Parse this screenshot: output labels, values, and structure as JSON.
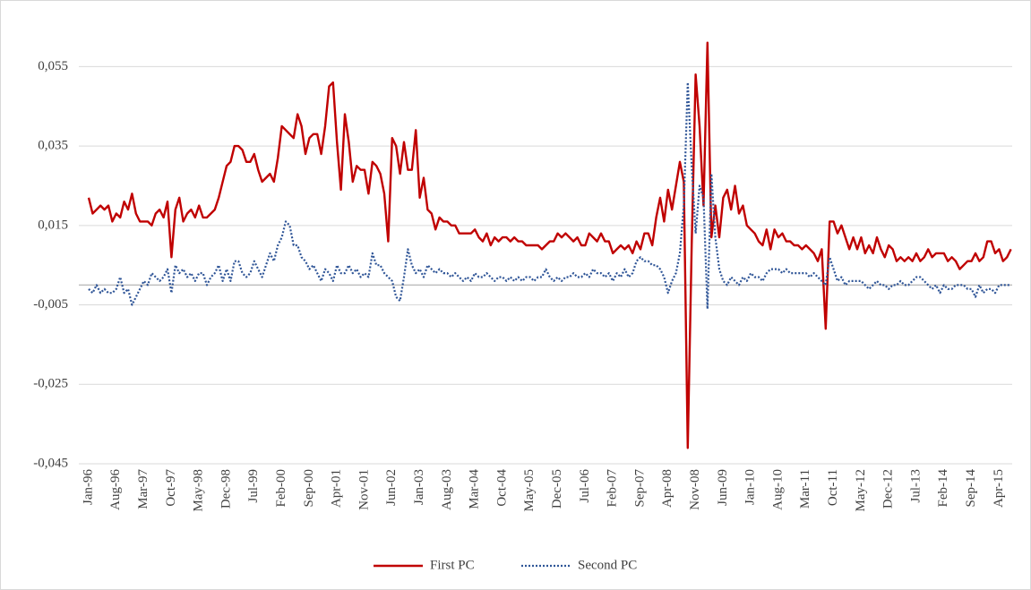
{
  "chart_data": {
    "type": "line",
    "categories": [
      "Jan-96",
      null,
      null,
      null,
      null,
      null,
      null,
      "Aug-96",
      null,
      null,
      null,
      null,
      null,
      null,
      "Mar-97",
      null,
      null,
      null,
      null,
      null,
      null,
      "Oct-97",
      null,
      null,
      null,
      null,
      null,
      null,
      "May-98",
      null,
      null,
      null,
      null,
      null,
      null,
      "Dec-98",
      null,
      null,
      null,
      null,
      null,
      null,
      "Jul-99",
      null,
      null,
      null,
      null,
      null,
      null,
      "Feb-00",
      null,
      null,
      null,
      null,
      null,
      null,
      "Sep-00",
      null,
      null,
      null,
      null,
      null,
      null,
      "Apr-01",
      null,
      null,
      null,
      null,
      null,
      null,
      "Nov-01",
      null,
      null,
      null,
      null,
      null,
      null,
      "Jun-02",
      null,
      null,
      null,
      null,
      null,
      null,
      "Jan-03",
      null,
      null,
      null,
      null,
      null,
      null,
      "Aug-03",
      null,
      null,
      null,
      null,
      null,
      null,
      "Mar-04",
      null,
      null,
      null,
      null,
      null,
      null,
      "Oct-04",
      null,
      null,
      null,
      null,
      null,
      null,
      "May-05",
      null,
      null,
      null,
      null,
      null,
      null,
      "Dec-05",
      null,
      null,
      null,
      null,
      null,
      null,
      "Jul-06",
      null,
      null,
      null,
      null,
      null,
      null,
      "Feb-07",
      null,
      null,
      null,
      null,
      null,
      null,
      "Sep-07",
      null,
      null,
      null,
      null,
      null,
      null,
      "Apr-08",
      null,
      null,
      null,
      null,
      null,
      null,
      "Nov-08",
      null,
      null,
      null,
      null,
      null,
      null,
      "Jun-09",
      null,
      null,
      null,
      null,
      null,
      null,
      "Jan-10",
      null,
      null,
      null,
      null,
      null,
      null,
      "Aug-10",
      null,
      null,
      null,
      null,
      null,
      null,
      "Mar-11",
      null,
      null,
      null,
      null,
      null,
      null,
      "Oct-11",
      null,
      null,
      null,
      null,
      null,
      null,
      "May-12",
      null,
      null,
      null,
      null,
      null,
      null,
      "Dec-12",
      null,
      null,
      null,
      null,
      null,
      null,
      "Jul-13",
      null,
      null,
      null,
      null,
      null,
      null,
      "Feb-14",
      null,
      null,
      null,
      null,
      null,
      null,
      "Sep-14",
      null,
      null,
      null,
      null,
      null,
      null,
      "Apr-15",
      null,
      null,
      null
    ],
    "series": [
      {
        "name": "First PC",
        "color": "#c00000",
        "style": "solid",
        "values": [
          0.022,
          0.018,
          0.019,
          0.02,
          0.019,
          0.02,
          0.016,
          0.018,
          0.017,
          0.021,
          0.019,
          0.023,
          0.018,
          0.016,
          0.016,
          0.016,
          0.015,
          0.018,
          0.019,
          0.017,
          0.021,
          0.007,
          0.019,
          0.022,
          0.016,
          0.018,
          0.019,
          0.017,
          0.02,
          0.017,
          0.017,
          0.018,
          0.019,
          0.022,
          0.026,
          0.03,
          0.031,
          0.035,
          0.035,
          0.034,
          0.031,
          0.031,
          0.033,
          0.029,
          0.026,
          0.027,
          0.028,
          0.026,
          0.032,
          0.04,
          0.039,
          0.038,
          0.037,
          0.043,
          0.04,
          0.033,
          0.037,
          0.038,
          0.038,
          0.033,
          0.04,
          0.05,
          0.051,
          0.036,
          0.024,
          0.043,
          0.036,
          0.026,
          0.03,
          0.029,
          0.029,
          0.023,
          0.031,
          0.03,
          0.028,
          0.023,
          0.011,
          0.037,
          0.035,
          0.028,
          0.036,
          0.029,
          0.029,
          0.039,
          0.022,
          0.027,
          0.019,
          0.018,
          0.014,
          0.017,
          0.016,
          0.016,
          0.015,
          0.015,
          0.013,
          0.013,
          0.013,
          0.013,
          0.014,
          0.012,
          0.011,
          0.013,
          0.01,
          0.012,
          0.011,
          0.012,
          0.012,
          0.011,
          0.012,
          0.011,
          0.011,
          0.01,
          0.01,
          0.01,
          0.01,
          0.009,
          0.01,
          0.011,
          0.011,
          0.013,
          0.012,
          0.013,
          0.012,
          0.011,
          0.012,
          0.01,
          0.01,
          0.013,
          0.012,
          0.011,
          0.013,
          0.011,
          0.011,
          0.008,
          0.009,
          0.01,
          0.009,
          0.01,
          0.008,
          0.011,
          0.009,
          0.013,
          0.013,
          0.01,
          0.017,
          0.022,
          0.016,
          0.024,
          0.019,
          0.025,
          0.031,
          0.026,
          -0.041,
          0.01,
          0.053,
          0.04,
          0.02,
          0.061,
          0.012,
          0.02,
          0.012,
          0.022,
          0.024,
          0.019,
          0.025,
          0.018,
          0.02,
          0.015,
          0.014,
          0.013,
          0.011,
          0.01,
          0.014,
          0.009,
          0.014,
          0.012,
          0.013,
          0.011,
          0.011,
          0.01,
          0.01,
          0.009,
          0.01,
          0.009,
          0.008,
          0.006,
          0.009,
          -0.011,
          0.016,
          0.016,
          0.013,
          0.015,
          0.012,
          0.009,
          0.012,
          0.009,
          0.012,
          0.008,
          0.01,
          0.008,
          0.012,
          0.009,
          0.007,
          0.01,
          0.009,
          0.006,
          0.007,
          0.006,
          0.007,
          0.006,
          0.008,
          0.006,
          0.007,
          0.009,
          0.007,
          0.008,
          0.008,
          0.008,
          0.006,
          0.007,
          0.006,
          0.004,
          0.005,
          0.006,
          0.006,
          0.008,
          0.006,
          0.007,
          0.011,
          0.011,
          0.008,
          0.009,
          0.006,
          0.007,
          0.009
        ]
      },
      {
        "name": "Second PC",
        "color": "#2f5597",
        "style": "dotted",
        "values": [
          -0.001,
          -0.002,
          0.0,
          -0.002,
          -0.001,
          -0.002,
          -0.002,
          -0.001,
          0.002,
          -0.002,
          -0.001,
          -0.005,
          -0.003,
          -0.001,
          0.001,
          0.0,
          0.003,
          0.002,
          0.001,
          0.002,
          0.004,
          -0.002,
          0.005,
          0.003,
          0.004,
          0.002,
          0.003,
          0.001,
          0.003,
          0.003,
          0.0,
          0.002,
          0.003,
          0.005,
          0.001,
          0.004,
          0.001,
          0.006,
          0.006,
          0.003,
          0.002,
          0.003,
          0.006,
          0.004,
          0.002,
          0.005,
          0.008,
          0.006,
          0.01,
          0.012,
          0.016,
          0.015,
          0.01,
          0.01,
          0.007,
          0.006,
          0.004,
          0.005,
          0.003,
          0.001,
          0.004,
          0.003,
          0.001,
          0.005,
          0.003,
          0.003,
          0.005,
          0.003,
          0.004,
          0.002,
          0.003,
          0.002,
          0.008,
          0.005,
          0.005,
          0.003,
          0.002,
          0.001,
          -0.003,
          -0.004,
          0.002,
          0.009,
          0.005,
          0.003,
          0.004,
          0.002,
          0.005,
          0.004,
          0.003,
          0.004,
          0.003,
          0.003,
          0.002,
          0.003,
          0.002,
          0.001,
          0.002,
          0.001,
          0.003,
          0.002,
          0.002,
          0.003,
          0.002,
          0.001,
          0.002,
          0.002,
          0.001,
          0.002,
          0.001,
          0.002,
          0.001,
          0.002,
          0.002,
          0.001,
          0.002,
          0.002,
          0.004,
          0.002,
          0.001,
          0.002,
          0.001,
          0.002,
          0.002,
          0.003,
          0.002,
          0.002,
          0.003,
          0.002,
          0.004,
          0.003,
          0.003,
          0.002,
          0.003,
          0.001,
          0.003,
          0.002,
          0.004,
          0.002,
          0.003,
          0.006,
          0.007,
          0.006,
          0.006,
          0.005,
          0.005,
          0.004,
          0.002,
          -0.002,
          0.001,
          0.003,
          0.008,
          0.02,
          0.051,
          0.03,
          0.013,
          0.025,
          0.022,
          -0.006,
          0.028,
          0.012,
          0.004,
          0.001,
          0.0,
          0.002,
          0.001,
          0.0,
          0.002,
          0.001,
          0.003,
          0.002,
          0.002,
          0.001,
          0.003,
          0.004,
          0.004,
          0.004,
          0.003,
          0.004,
          0.003,
          0.003,
          0.003,
          0.003,
          0.003,
          0.002,
          0.003,
          0.002,
          0.001,
          0.0,
          0.007,
          0.004,
          0.001,
          0.002,
          0.0,
          0.001,
          0.001,
          0.001,
          0.001,
          0.0,
          -0.001,
          0.0,
          0.001,
          0.0,
          0.0,
          -0.001,
          0.0,
          0.0,
          0.001,
          0.0,
          0.0,
          0.001,
          0.002,
          0.002,
          0.001,
          0.0,
          -0.001,
          0.0,
          -0.002,
          0.0,
          -0.001,
          -0.001,
          0.0,
          0.0,
          0.0,
          -0.001,
          -0.001,
          -0.003,
          0.0,
          -0.002,
          -0.001,
          -0.001,
          -0.002,
          0.0,
          0.0,
          0.0,
          0.0
        ]
      }
    ],
    "ylim": [
      -0.045,
      0.065
    ],
    "yticks": [
      {
        "value": -0.045,
        "label": "-0,045"
      },
      {
        "value": -0.025,
        "label": "-0,025"
      },
      {
        "value": -0.005,
        "label": "-0,005"
      },
      {
        "value": 0.015,
        "label": "0,015"
      },
      {
        "value": 0.035,
        "label": "0,035"
      },
      {
        "value": 0.055,
        "label": "0,055"
      }
    ],
    "grid": true,
    "legend": "bottom"
  }
}
